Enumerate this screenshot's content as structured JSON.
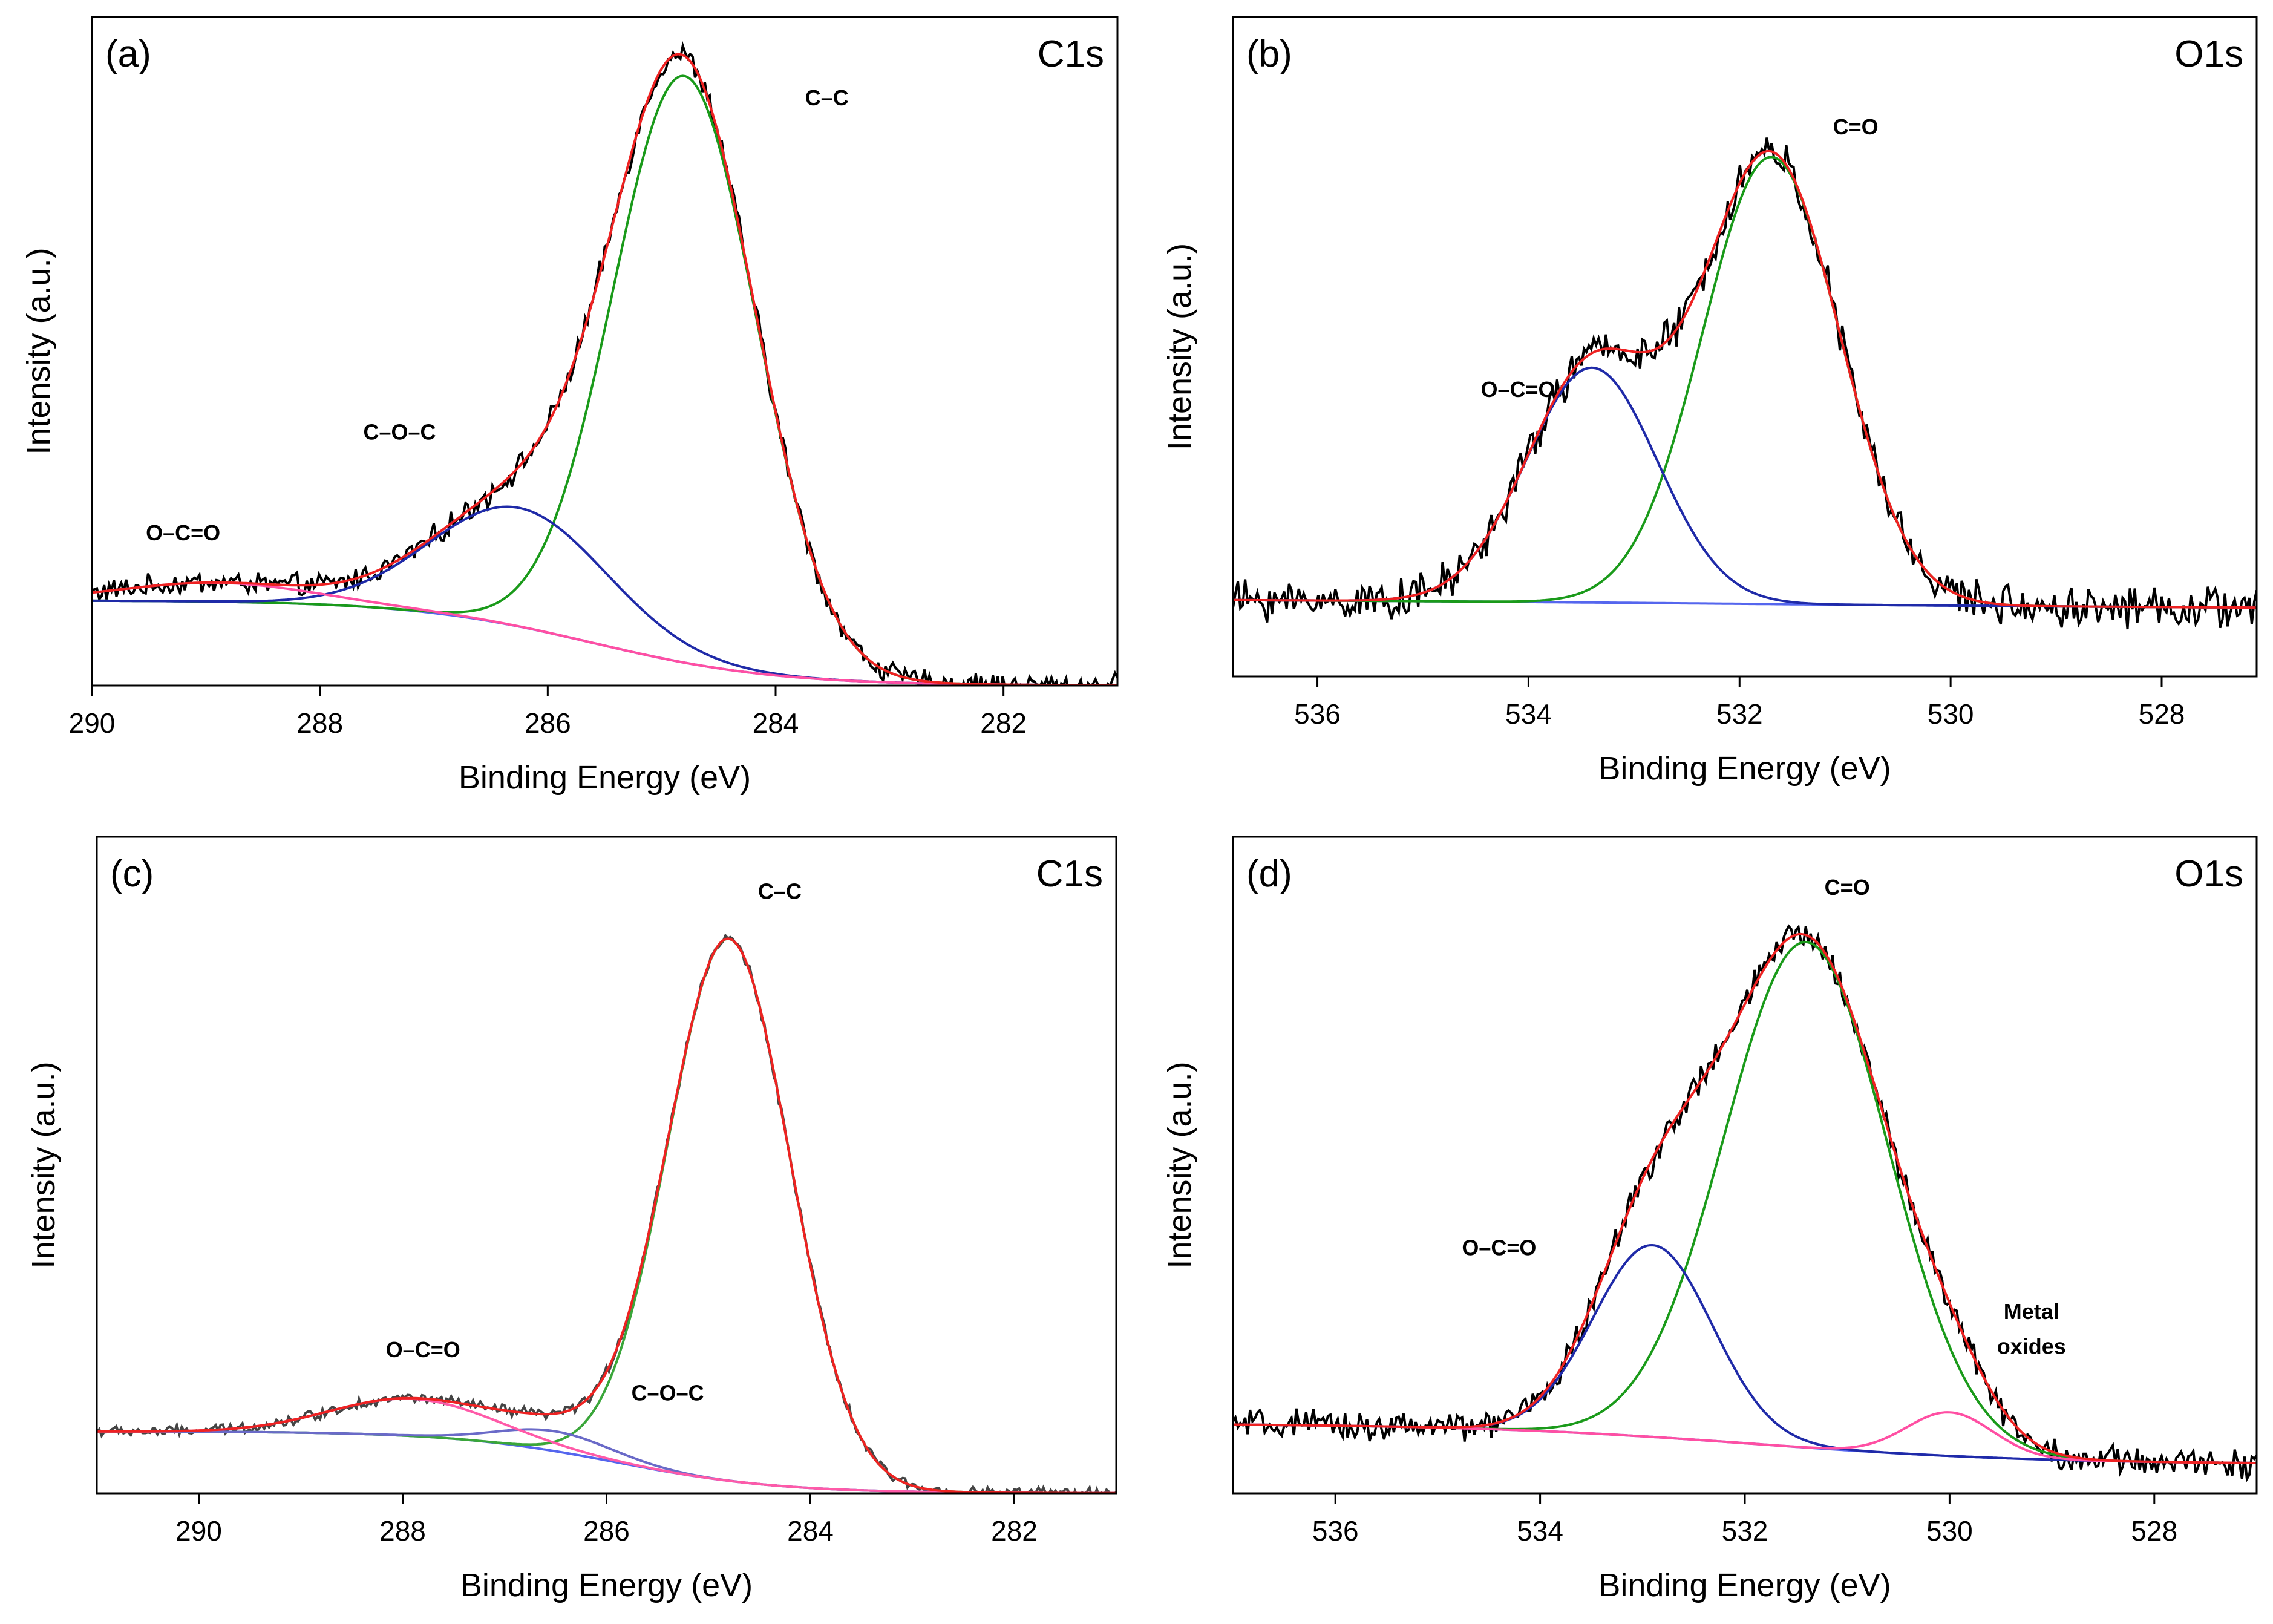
{
  "chart_data": [
    {
      "type": "line",
      "panel_label": "(a)",
      "region": "C1s",
      "xlabel": "Binding Energy (eV)",
      "ylabel": "Intensity (a.u.)",
      "xlim": [
        290,
        281
      ],
      "ylim": [
        0,
        1.06
      ],
      "xticks": [
        290,
        288,
        286,
        284,
        282
      ],
      "baseline": {
        "start": 0.135,
        "end": 0.0,
        "center": 285.6,
        "width": 0.8
      },
      "peaks": [
        {
          "name": "C–C",
          "center": 284.8,
          "height": 0.93,
          "sigma": 0.63,
          "color": "#1a9a1a"
        },
        {
          "name": "C–O–C",
          "center": 286.25,
          "height": 0.188,
          "sigma": 0.77,
          "color": "#1f2aa8"
        },
        {
          "name": "O–C=O",
          "center": 288.9,
          "height": 0.03,
          "sigma": 0.85,
          "color": "#ff4fa3"
        }
      ],
      "noise": 0.014,
      "raw_color": "#000000",
      "annotations": [
        {
          "text": "C–C",
          "x": 283.55,
          "y": 0.92
        },
        {
          "text": "C–O–C",
          "x": 287.3,
          "y": 0.39
        },
        {
          "text": "O–C=O",
          "x": 289.2,
          "y": 0.23
        }
      ]
    },
    {
      "type": "line",
      "panel_label": "(b)",
      "region": "O1s",
      "xlabel": "Binding Energy (eV)",
      "ylabel": "Intensity (a.u.)",
      "xlim": [
        536.8,
        527.1
      ],
      "ylim": [
        -0.12,
        1.06
      ],
      "xticks": [
        536,
        534,
        532,
        530,
        528
      ],
      "baseline": {
        "start": 0.02,
        "end": 0.0,
        "center": 532,
        "width": 3
      },
      "peaks": [
        {
          "name": "C=O",
          "center": 531.7,
          "height": 0.8,
          "sigma": 0.65,
          "color": "#1a9a1a"
        },
        {
          "name": "O–C=O",
          "center": 533.4,
          "height": 0.42,
          "sigma": 0.62,
          "color": "#1f2aa8"
        }
      ],
      "noise": 0.028,
      "raw_color": "#000000",
      "annotations": [
        {
          "text": "C=O",
          "x": 530.9,
          "y": 0.85
        },
        {
          "text": "O–C=O",
          "x": 534.1,
          "y": 0.38
        }
      ]
    },
    {
      "type": "line",
      "panel_label": "(c)",
      "region": "C1s",
      "xlabel": "Binding Energy (eV)",
      "ylabel": "Intensity (a.u.)",
      "xlim": [
        291,
        281
      ],
      "ylim": [
        0,
        1.06
      ],
      "xticks": [
        290,
        288,
        286,
        284,
        282
      ],
      "baseline": {
        "start": 0.1,
        "end": 0.0,
        "center": 285.9,
        "width": 0.8
      },
      "peaks": [
        {
          "name": "C–C",
          "center": 284.8,
          "height": 0.875,
          "sigma": 0.6,
          "color": "#3aa63a"
        },
        {
          "name": "C–O–C",
          "center": 286.5,
          "height": 0.032,
          "sigma": 0.55,
          "color": "#6a6ac8"
        },
        {
          "name": "O–C=O",
          "center": 287.9,
          "height": 0.06,
          "sigma": 0.8,
          "color": "#ff5aa8"
        }
      ],
      "noise": 0.007,
      "raw_color": "#444444",
      "annotations": [
        {
          "text": "C–C",
          "x": 284.3,
          "y": 0.96
        },
        {
          "text": "O–C=O",
          "x": 287.8,
          "y": 0.22
        },
        {
          "text": "C–O–C",
          "x": 285.4,
          "y": 0.15
        }
      ]
    },
    {
      "type": "line",
      "panel_label": "(d)",
      "region": "O1s",
      "xlabel": "Binding Energy (eV)",
      "ylabel": "Intensity (a.u.)",
      "xlim": [
        537,
        527
      ],
      "ylim": [
        -0.05,
        1.08
      ],
      "xticks": [
        536,
        534,
        532,
        530,
        528
      ],
      "baseline": {
        "start": 0.07,
        "end": 0.0,
        "center": 531.9,
        "width": 1.4
      },
      "peaks": [
        {
          "name": "C=O",
          "center": 531.4,
          "height": 0.87,
          "sigma": 0.8,
          "color": "#1a9a1a"
        },
        {
          "name": "O–C=O",
          "center": 532.9,
          "height": 0.33,
          "sigma": 0.58,
          "color": "#1f2aa8"
        },
        {
          "name": "Metal oxides",
          "center": 530.0,
          "height": 0.075,
          "sigma": 0.42,
          "color": "#ff4fa3"
        }
      ],
      "noise": 0.02,
      "raw_color": "#000000",
      "annotations": [
        {
          "text": "C=O",
          "x": 531.0,
          "y": 0.98
        },
        {
          "text": "O–C=O",
          "x": 534.4,
          "y": 0.36
        },
        {
          "text": "Metal",
          "x": 529.2,
          "y": 0.25
        },
        {
          "text": "oxides",
          "x": 529.2,
          "y": 0.19
        }
      ]
    }
  ],
  "fit_envelope_color": "#ee2222",
  "baseline_color": "#5566ee"
}
